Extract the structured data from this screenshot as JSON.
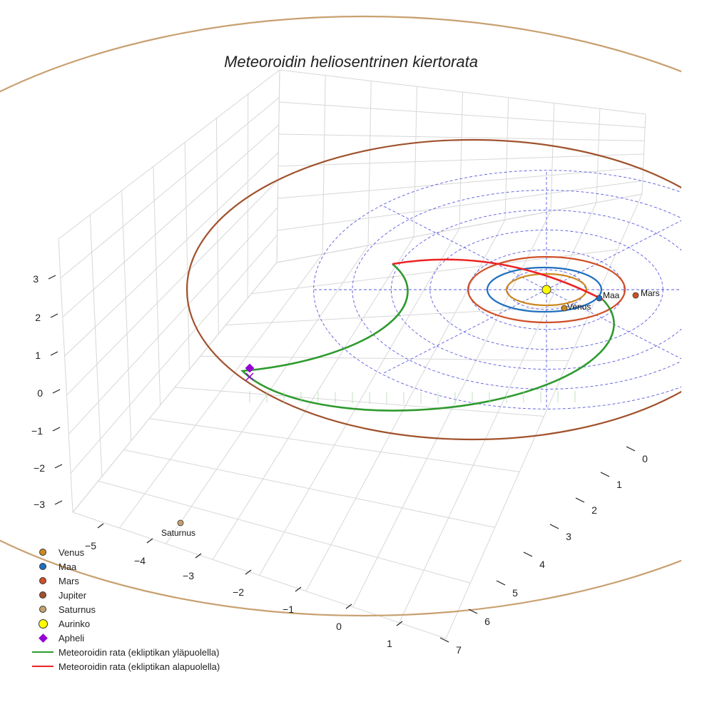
{
  "chart_data": {
    "type": "scatter",
    "title": "Meteoroidin heliosentrinen kiertorata",
    "z_ticks": [
      "−3",
      "−2",
      "−1",
      "0",
      "1",
      "2",
      "3"
    ],
    "x_ticks": [
      "−5",
      "−4",
      "−3",
      "−2",
      "−1",
      "0",
      "1"
    ],
    "y_ticks": [
      "0",
      "1",
      "2",
      "3",
      "4",
      "5",
      "6",
      "7"
    ],
    "planets": [
      {
        "name": "Venus",
        "label": "Venus",
        "color": "#cc8822",
        "a": 0.72
      },
      {
        "name": "Maa",
        "label": "Maa",
        "color": "#1f6fc0",
        "a": 1.0
      },
      {
        "name": "Mars",
        "label": "Mars",
        "color": "#d05028",
        "a": 1.52
      },
      {
        "name": "Jupiter",
        "label": "",
        "color": "#a0522d",
        "a": 5.2
      },
      {
        "name": "Saturnus",
        "label": "Saturnus",
        "color": "#c8a070",
        "a": 9.5
      }
    ],
    "sun": {
      "name": "Aurinko",
      "color": "#ffff00"
    },
    "aphelion": {
      "name": "Apheli",
      "color": "#9400d3"
    },
    "meteoroid": {
      "perihelion_au": 1.0,
      "aphelion_au": 5.3,
      "series": [
        {
          "name": "Meteoroidin rata (ekliptikan yläpuolella)",
          "color": "#2e9a2e"
        },
        {
          "name": "Meteoroidin rata (ekliptikan alapuolella)",
          "color": "#ee2222"
        }
      ]
    },
    "grid": true,
    "legend": "bottom-left"
  }
}
